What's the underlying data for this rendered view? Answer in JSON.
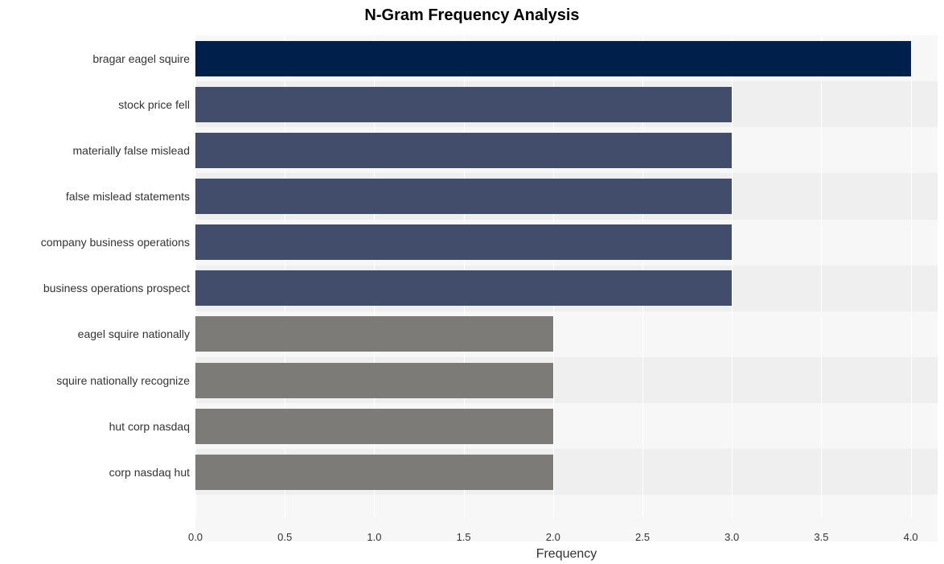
{
  "chart": {
    "type": "bar-horizontal",
    "title": "N-Gram Frequency Analysis",
    "title_fontsize": 20,
    "title_fontweight": "700",
    "title_color": "#000000",
    "xlabel": "Frequency",
    "xlabel_fontsize": 16,
    "xlabel_color": "#333333",
    "ylabel_fontsize": 14,
    "xtick_fontsize": 13,
    "x_min": 0.0,
    "x_max": 4.15,
    "xtick_step": 0.5,
    "xticks": [
      "0.0",
      "0.5",
      "1.0",
      "1.5",
      "2.0",
      "2.5",
      "3.0",
      "3.5",
      "4.0"
    ],
    "plot_bg_even": "#f7f7f7",
    "plot_bg_odd": "#efefef",
    "grid_vline_color": "#ffffff",
    "bar_height_ratio": 0.77,
    "categories": [
      "bragar eagel squire",
      "stock price fell",
      "materially false mislead",
      "false mislead statements",
      "company business operations",
      "business operations prospect",
      "eagel squire nationally",
      "squire nationally recognize",
      "hut corp nasdaq",
      "corp nasdaq hut"
    ],
    "values": [
      4,
      3,
      3,
      3,
      3,
      3,
      2,
      2,
      2,
      2
    ],
    "bar_colors": [
      "#00204c",
      "#414d6b",
      "#414d6b",
      "#414d6b",
      "#414d6b",
      "#414d6b",
      "#7c7b78",
      "#7c7b78",
      "#7c7b78",
      "#7c7b78"
    ]
  }
}
